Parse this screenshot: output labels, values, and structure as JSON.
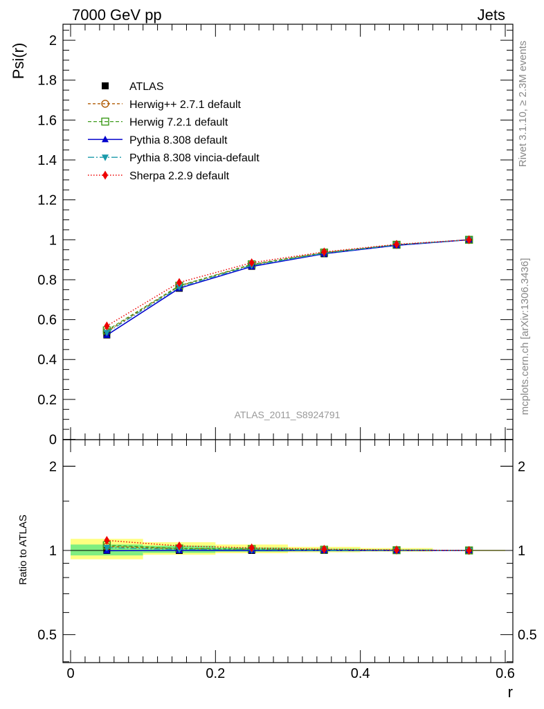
{
  "header": {
    "left": "7000 GeV pp",
    "right": "Jets"
  },
  "side_labels": {
    "rivet": "Rivet 3.1.10, ≥ 2.3M events",
    "mcplots": "mcplots.cern.ch [arXiv:1306.3436]"
  },
  "watermark": "ATLAS_2011_S8924791",
  "chart_data": [
    {
      "type": "line",
      "ylabel": "Psi(r)",
      "xlabel": "r",
      "xlim": [
        0,
        0.6
      ],
      "ylim": [
        0,
        2.08
      ],
      "xticks": [
        "0",
        "0.2",
        "0.4",
        "0.6"
      ],
      "yticks": [
        "0",
        "0.2",
        "0.4",
        "0.6",
        "0.8",
        "1",
        "1.2",
        "1.4",
        "1.6",
        "1.8",
        "2"
      ],
      "x": [
        0.05,
        0.15,
        0.25,
        0.35,
        0.45,
        0.55
      ],
      "legend_position": "top-left",
      "series": [
        {
          "name": "ATLAS",
          "color": "#000000",
          "marker": "square",
          "values": [
            0.523,
            0.757,
            0.867,
            0.93,
            0.973,
            1.0
          ]
        },
        {
          "name": "Herwig++ 2.7.1 default",
          "color": "#b05a00",
          "marker": "circle-open",
          "values": [
            0.54,
            0.768,
            0.875,
            0.935,
            0.975,
            1.0
          ]
        },
        {
          "name": "Herwig 7.2.1 default",
          "color": "#3c9a1a",
          "marker": "square-open",
          "values": [
            0.546,
            0.77,
            0.877,
            0.936,
            0.975,
            1.0
          ]
        },
        {
          "name": "Pythia 8.308 default",
          "color": "#0000cc",
          "marker": "triangle-up",
          "values": [
            0.522,
            0.757,
            0.866,
            0.93,
            0.972,
            1.0
          ]
        },
        {
          "name": "Pythia 8.308 vincia-default",
          "color": "#1a9aaa",
          "marker": "triangle-down",
          "values": [
            0.535,
            0.763,
            0.871,
            0.932,
            0.974,
            1.0
          ]
        },
        {
          "name": "Sherpa 2.2.9 default",
          "color": "#ee0000",
          "marker": "diamond",
          "values": [
            0.568,
            0.786,
            0.885,
            0.939,
            0.977,
            1.0
          ]
        }
      ]
    },
    {
      "type": "line",
      "ylabel": "Ratio to ATLAS",
      "xlabel": "r",
      "xlim": [
        0,
        0.6
      ],
      "ylim": [
        0.37,
        2.3
      ],
      "y_scale": "log",
      "yticks": [
        "0.5",
        "1",
        "2"
      ],
      "xticks": [
        "0",
        "0.2",
        "0.4",
        "0.6"
      ],
      "x": [
        0.05,
        0.15,
        0.25,
        0.35,
        0.45,
        0.55
      ],
      "bands": [
        {
          "x_edges": [
            0,
            0.1,
            0.2,
            0.3,
            0.4,
            0.5,
            0.6
          ],
          "total_low": [
            0.93,
            0.965,
            0.978,
            0.985,
            0.99,
            0.995
          ],
          "total_high": [
            1.1,
            1.07,
            1.05,
            1.03,
            1.02,
            1.005
          ],
          "stat_low": [
            0.96,
            0.98,
            0.99,
            0.993,
            0.996,
            0.998
          ],
          "stat_high": [
            1.05,
            1.04,
            1.025,
            1.015,
            1.01,
            1.003
          ],
          "total_color": "#ffff80",
          "stat_color": "#80ee80"
        }
      ],
      "series": [
        {
          "name": "ATLAS",
          "values": [
            1.0,
            1.0,
            1.0,
            1.0,
            1.0,
            1.0
          ]
        },
        {
          "name": "Herwig++ 2.7.1 default",
          "values": [
            1.033,
            1.015,
            1.009,
            1.005,
            1.002,
            1.0
          ]
        },
        {
          "name": "Herwig 7.2.1 default",
          "values": [
            1.044,
            1.017,
            1.012,
            1.006,
            1.002,
            1.0
          ]
        },
        {
          "name": "Pythia 8.308 default",
          "values": [
            0.998,
            1.0,
            0.999,
            1.0,
            0.999,
            1.0
          ]
        },
        {
          "name": "Pythia 8.308 vincia-default",
          "values": [
            1.023,
            1.008,
            1.005,
            1.002,
            1.001,
            1.0
          ]
        },
        {
          "name": "Sherpa 2.2.9 default",
          "values": [
            1.086,
            1.038,
            1.021,
            1.01,
            1.004,
            1.0
          ]
        }
      ]
    }
  ]
}
